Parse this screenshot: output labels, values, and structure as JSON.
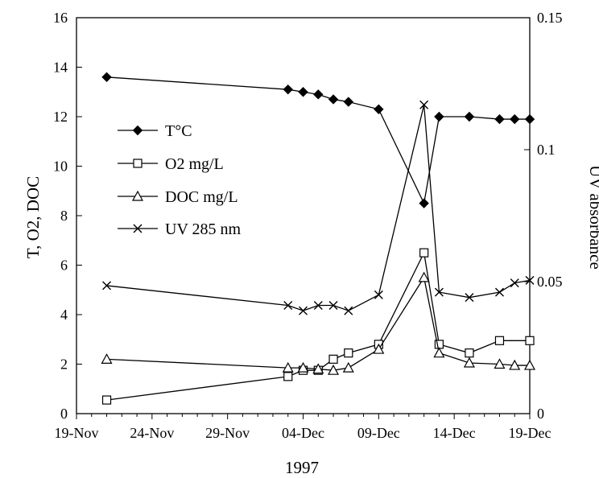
{
  "chart_data": {
    "type": "line",
    "title": "",
    "xlabel": "1997",
    "ylabel": "T, O2, DOC",
    "y2label": "UV absorbance",
    "x_ticks": [
      "19-Nov",
      "24-Nov",
      "29-Nov",
      "04-Dec",
      "09-Dec",
      "14-Dec",
      "19-Dec"
    ],
    "y_ticks": [
      "0",
      "2",
      "4",
      "6",
      "8",
      "10",
      "12",
      "14",
      "16"
    ],
    "y2_ticks": [
      "0",
      "0.05",
      "0.1",
      "0.15"
    ],
    "xlim": [
      "1997-11-19",
      "1997-12-19"
    ],
    "ylim": [
      0,
      16
    ],
    "y2lim": [
      0,
      0.15
    ],
    "legend_position": "upper-left",
    "grid": false,
    "series": [
      {
        "name": "T°C",
        "axis": "left",
        "marker": "filled-diamond",
        "points": [
          {
            "x": "1997-11-21",
            "y": 13.6
          },
          {
            "x": "1997-12-03",
            "y": 13.1
          },
          {
            "x": "1997-12-04",
            "y": 13.0
          },
          {
            "x": "1997-12-05",
            "y": 12.9
          },
          {
            "x": "1997-12-06",
            "y": 12.7
          },
          {
            "x": "1997-12-07",
            "y": 12.6
          },
          {
            "x": "1997-12-09",
            "y": 12.3
          },
          {
            "x": "1997-12-12",
            "y": 8.5
          },
          {
            "x": "1997-12-13",
            "y": 12.0
          },
          {
            "x": "1997-12-15",
            "y": 12.0
          },
          {
            "x": "1997-12-17",
            "y": 11.9
          },
          {
            "x": "1997-12-18",
            "y": 11.9
          },
          {
            "x": "1997-12-19",
            "y": 11.9
          }
        ]
      },
      {
        "name": "O2 mg/L",
        "axis": "left",
        "marker": "open-square",
        "points": [
          {
            "x": "1997-11-21",
            "y": 0.55
          },
          {
            "x": "1997-12-03",
            "y": 1.5
          },
          {
            "x": "1997-12-04",
            "y": 1.75
          },
          {
            "x": "1997-12-05",
            "y": 1.75
          },
          {
            "x": "1997-12-06",
            "y": 2.2
          },
          {
            "x": "1997-12-07",
            "y": 2.45
          },
          {
            "x": "1997-12-09",
            "y": 2.8
          },
          {
            "x": "1997-12-12",
            "y": 6.5
          },
          {
            "x": "1997-12-13",
            "y": 2.8
          },
          {
            "x": "1997-12-15",
            "y": 2.45
          },
          {
            "x": "1997-12-17",
            "y": 2.95
          },
          {
            "x": "1997-12-19",
            "y": 2.95
          }
        ]
      },
      {
        "name": "DOC mg/L",
        "axis": "left",
        "marker": "open-triangle",
        "points": [
          {
            "x": "1997-11-21",
            "y": 2.2
          },
          {
            "x": "1997-12-03",
            "y": 1.85
          },
          {
            "x": "1997-12-04",
            "y": 1.85
          },
          {
            "x": "1997-12-05",
            "y": 1.8
          },
          {
            "x": "1997-12-06",
            "y": 1.75
          },
          {
            "x": "1997-12-07",
            "y": 1.85
          },
          {
            "x": "1997-12-09",
            "y": 2.6
          },
          {
            "x": "1997-12-12",
            "y": 5.5
          },
          {
            "x": "1997-12-13",
            "y": 2.45
          },
          {
            "x": "1997-12-15",
            "y": 2.05
          },
          {
            "x": "1997-12-17",
            "y": 2.0
          },
          {
            "x": "1997-12-18",
            "y": 1.95
          },
          {
            "x": "1997-12-19",
            "y": 1.95
          }
        ]
      },
      {
        "name": "UV 285 nm",
        "axis": "right",
        "marker": "x",
        "points": [
          {
            "x": "1997-11-21",
            "y": 0.0485
          },
          {
            "x": "1997-12-03",
            "y": 0.041
          },
          {
            "x": "1997-12-04",
            "y": 0.039
          },
          {
            "x": "1997-12-05",
            "y": 0.041
          },
          {
            "x": "1997-12-06",
            "y": 0.041
          },
          {
            "x": "1997-12-07",
            "y": 0.039
          },
          {
            "x": "1997-12-09",
            "y": 0.045
          },
          {
            "x": "1997-12-12",
            "y": 0.117
          },
          {
            "x": "1997-12-13",
            "y": 0.046
          },
          {
            "x": "1997-12-15",
            "y": 0.044
          },
          {
            "x": "1997-12-17",
            "y": 0.046
          },
          {
            "x": "1997-12-18",
            "y": 0.0495
          },
          {
            "x": "1997-12-19",
            "y": 0.0505
          }
        ]
      }
    ]
  }
}
